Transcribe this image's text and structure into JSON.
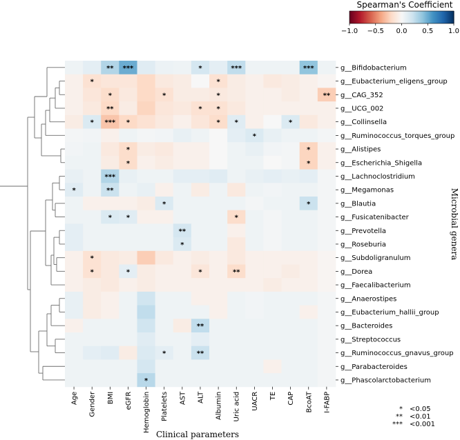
{
  "chart_data": {
    "type": "heatmap",
    "title": "",
    "xlabel": "Clinical parameters",
    "ylabel": "Microbial genera",
    "colorbar": {
      "title": "Spearman's Coefficient",
      "range": [
        -1.0,
        1.0
      ],
      "ticks": [
        "−1.0",
        "−0.5",
        "0.0",
        "0.5",
        "1.0"
      ],
      "colors": [
        "#67001f",
        "#b2182b",
        "#d6604d",
        "#f4a582",
        "#fddbc7",
        "#f7f7f7",
        "#d1e5f0",
        "#92c5de",
        "#4393c3",
        "#2166ac",
        "#053061"
      ]
    },
    "columns": [
      "Age",
      "Gender",
      "BMI",
      "eGFR",
      "Hemoglobin",
      "Platelets",
      "AST",
      "ALT",
      "Albumin",
      "Uric acid",
      "UACR",
      "TE",
      "CAP",
      "BcoAT",
      "I-FABP"
    ],
    "rows": [
      "g__Bifidobacterium",
      "g__Eubacterium_eligens_group",
      "g__CAG_352",
      "g__UCG_002",
      "g__Collinsella",
      "g__Ruminococcus_torques_group",
      "g__Alistipes",
      "g__Escherichia_Shigella",
      "g__Lachnoclostridium",
      "g__Megamonas",
      "g__Blautia",
      "g__Fusicatenibacter",
      "g__Prevotella",
      "g__Roseburia",
      "g__Subdoligranulum",
      "g__Dorea",
      "g__Faecalibacterium",
      "g__Anaerostipes",
      "g__Eubacterium_hallii_group",
      "g__Bacteroides",
      "g__Streptococcus",
      "g__Ruminococcus_gnavus_group",
      "g__Parabacteroides",
      "g__Phascolarctobacterium"
    ],
    "values": [
      [
        0.05,
        0.1,
        0.3,
        0.5,
        0.12,
        0.06,
        0.05,
        0.18,
        0.1,
        0.25,
        0.05,
        0.05,
        0.05,
        0.4,
        0.05
      ],
      [
        -0.05,
        -0.15,
        -0.12,
        -0.12,
        -0.2,
        -0.1,
        -0.08,
        0.0,
        -0.15,
        -0.08,
        -0.05,
        -0.1,
        -0.08,
        -0.05,
        -0.02
      ],
      [
        -0.05,
        -0.12,
        -0.18,
        -0.1,
        -0.2,
        -0.15,
        -0.08,
        -0.08,
        -0.1,
        -0.08,
        -0.05,
        -0.05,
        -0.08,
        -0.05,
        -0.25
      ],
      [
        -0.05,
        -0.1,
        -0.2,
        -0.08,
        -0.22,
        -0.12,
        -0.1,
        -0.15,
        -0.15,
        -0.1,
        -0.05,
        -0.05,
        -0.05,
        -0.05,
        -0.05
      ],
      [
        -0.08,
        0.15,
        -0.28,
        -0.2,
        -0.15,
        -0.1,
        -0.05,
        -0.12,
        -0.18,
        0.12,
        -0.05,
        0.0,
        0.15,
        -0.1,
        -0.05
      ],
      [
        0.02,
        0.03,
        -0.05,
        0.05,
        0.02,
        0.03,
        0.08,
        0.05,
        0.0,
        0.1,
        0.15,
        0.08,
        0.05,
        0.05,
        0.02
      ],
      [
        0.03,
        0.05,
        -0.1,
        -0.18,
        -0.08,
        -0.1,
        -0.05,
        -0.05,
        0.0,
        0.05,
        0.08,
        0.03,
        0.02,
        -0.22,
        -0.05
      ],
      [
        0.05,
        0.05,
        -0.08,
        -0.18,
        -0.05,
        -0.08,
        -0.05,
        -0.05,
        0.0,
        0.05,
        0.05,
        0.0,
        0.02,
        -0.22,
        -0.05
      ],
      [
        0.08,
        0.05,
        0.3,
        0.08,
        0.05,
        0.05,
        0.1,
        0.1,
        0.12,
        0.05,
        0.08,
        0.1,
        0.08,
        0.1,
        0.02
      ],
      [
        0.12,
        0.05,
        0.22,
        0.05,
        0.08,
        -0.05,
        0.05,
        -0.08,
        0.05,
        -0.1,
        0.05,
        0.03,
        0.05,
        0.05,
        0.02
      ],
      [
        0.05,
        -0.05,
        -0.05,
        -0.05,
        -0.08,
        0.15,
        0.05,
        0.05,
        0.05,
        0.05,
        0.02,
        0.05,
        0.05,
        0.22,
        0.02
      ],
      [
        0.05,
        0.05,
        0.15,
        0.12,
        -0.05,
        -0.05,
        0.05,
        0.05,
        0.05,
        -0.18,
        0.05,
        0.02,
        0.05,
        0.05,
        0.02
      ],
      [
        0.1,
        0.05,
        0.05,
        0.05,
        0.05,
        0.05,
        0.18,
        0.05,
        0.05,
        -0.05,
        0.05,
        0.02,
        0.05,
        0.05,
        0.02
      ],
      [
        0.1,
        0.05,
        0.05,
        0.05,
        0.05,
        0.05,
        0.15,
        0.05,
        0.05,
        -0.1,
        0.05,
        0.02,
        0.05,
        0.05,
        0.02
      ],
      [
        -0.05,
        -0.15,
        -0.1,
        -0.08,
        -0.25,
        -0.1,
        -0.05,
        -0.08,
        -0.05,
        -0.1,
        -0.05,
        -0.05,
        -0.05,
        -0.05,
        -0.02
      ],
      [
        -0.05,
        -0.15,
        -0.1,
        0.1,
        -0.08,
        -0.05,
        -0.05,
        -0.12,
        -0.05,
        -0.18,
        -0.05,
        -0.05,
        -0.08,
        -0.05,
        -0.02
      ],
      [
        -0.05,
        -0.08,
        -0.1,
        -0.05,
        -0.08,
        -0.05,
        -0.05,
        -0.05,
        -0.05,
        -0.05,
        -0.05,
        -0.08,
        -0.05,
        -0.05,
        -0.02
      ],
      [
        0.08,
        -0.08,
        -0.05,
        0.05,
        0.2,
        0.05,
        0.05,
        -0.05,
        -0.05,
        0.05,
        0.03,
        0.05,
        0.05,
        0.05,
        0.02
      ],
      [
        0.08,
        -0.08,
        -0.05,
        0.05,
        0.25,
        0.05,
        0.05,
        0.05,
        -0.05,
        0.05,
        0.03,
        0.05,
        0.05,
        -0.05,
        0.02
      ],
      [
        -0.05,
        0.05,
        0.05,
        0.05,
        0.2,
        0.05,
        -0.08,
        0.25,
        0.05,
        0.05,
        0.05,
        0.05,
        0.05,
        0.05,
        0.02
      ],
      [
        0.05,
        0.05,
        0.05,
        0.05,
        0.12,
        0.05,
        0.05,
        0.1,
        0.05,
        0.05,
        0.05,
        0.05,
        0.05,
        0.05,
        0.02
      ],
      [
        0.05,
        0.1,
        0.12,
        -0.08,
        0.15,
        0.1,
        0.05,
        0.22,
        0.05,
        0.05,
        0.05,
        0.05,
        0.05,
        0.05,
        0.02
      ],
      [
        0.05,
        0.05,
        0.05,
        0.05,
        0.18,
        0.05,
        0.05,
        0.05,
        0.05,
        0.05,
        0.05,
        -0.05,
        0.05,
        0.05,
        0.02
      ],
      [
        0.05,
        0.05,
        0.05,
        0.05,
        0.28,
        0.05,
        0.05,
        0.05,
        0.05,
        0.05,
        0.05,
        0.05,
        0.05,
        0.05,
        0.02
      ]
    ],
    "significance": [
      [
        "",
        "",
        "**",
        "***",
        "",
        "",
        "",
        "*",
        "",
        "***",
        "",
        "",
        "",
        "***",
        ""
      ],
      [
        "",
        "*",
        "",
        "",
        "",
        "",
        "",
        "",
        "*",
        "",
        "",
        "",
        "",
        "",
        ""
      ],
      [
        "",
        "",
        "*",
        "",
        "",
        "*",
        "",
        "",
        "*",
        "",
        "",
        "",
        "",
        "",
        "**"
      ],
      [
        "",
        "",
        "**",
        "",
        "",
        "",
        "",
        "*",
        "*",
        "",
        "",
        "",
        "",
        "",
        ""
      ],
      [
        "",
        "*",
        "***",
        "*",
        "",
        "",
        "",
        "",
        "*",
        "*",
        "",
        "",
        "*",
        "",
        ""
      ],
      [
        "",
        "",
        "",
        "",
        "",
        "",
        "",
        "",
        "",
        "",
        "*",
        "",
        "",
        "",
        ""
      ],
      [
        "",
        "",
        "",
        "*",
        "",
        "",
        "",
        "",
        "",
        "",
        "",
        "",
        "",
        "*",
        ""
      ],
      [
        "",
        "",
        "",
        "*",
        "",
        "",
        "",
        "",
        "",
        "",
        "",
        "",
        "",
        "*",
        ""
      ],
      [
        "",
        "",
        "***",
        "",
        "",
        "",
        "",
        "",
        "",
        "",
        "",
        "",
        "",
        "",
        ""
      ],
      [
        "*",
        "",
        "**",
        "",
        "",
        "",
        "",
        "",
        "",
        "",
        "",
        "",
        "",
        "",
        ""
      ],
      [
        "",
        "",
        "",
        "",
        "",
        "*",
        "",
        "",
        "",
        "",
        "",
        "",
        "",
        "*",
        ""
      ],
      [
        "",
        "",
        "*",
        "*",
        "",
        "",
        "",
        "",
        "",
        "*",
        "",
        "",
        "",
        "",
        ""
      ],
      [
        "",
        "",
        "",
        "",
        "",
        "",
        "**",
        "",
        "",
        "",
        "",
        "",
        "",
        "",
        ""
      ],
      [
        "",
        "",
        "",
        "",
        "",
        "",
        "*",
        "",
        "",
        "",
        "",
        "",
        "",
        "",
        ""
      ],
      [
        "",
        "*",
        "",
        "",
        "",
        "",
        "",
        "",
        "",
        "",
        "",
        "",
        "",
        "",
        ""
      ],
      [
        "",
        "*",
        "",
        "*",
        "",
        "",
        "",
        "*",
        "",
        "**",
        "",
        "",
        "",
        "",
        ""
      ],
      [
        "",
        "",
        "",
        "",
        "",
        "",
        "",
        "",
        "",
        "",
        "",
        "",
        "",
        "",
        ""
      ],
      [
        "",
        "",
        "",
        "",
        "",
        "",
        "",
        "",
        "",
        "",
        "",
        "",
        "",
        "",
        ""
      ],
      [
        "",
        "",
        "",
        "",
        "",
        "",
        "",
        "",
        "",
        "",
        "",
        "",
        "",
        "",
        ""
      ],
      [
        "",
        "",
        "",
        "",
        "",
        "",
        "",
        "**",
        "",
        "",
        "",
        "",
        "",
        "",
        ""
      ],
      [
        "",
        "",
        "",
        "",
        "",
        "",
        "",
        "",
        "",
        "",
        "",
        "",
        "",
        "",
        ""
      ],
      [
        "",
        "",
        "",
        "",
        "",
        "*",
        "",
        "**",
        "",
        "",
        "",
        "",
        "",
        "",
        ""
      ],
      [
        "",
        "",
        "",
        "",
        "",
        "",
        "",
        "",
        "",
        "",
        "",
        "",
        "",
        "",
        ""
      ],
      [
        "",
        "",
        "",
        "",
        "*",
        "",
        "",
        "",
        "",
        "",
        "",
        "",
        "",
        "",
        ""
      ]
    ],
    "significance_legend": [
      {
        "symbol": "*",
        "label": "<0.05"
      },
      {
        "symbol": "**",
        "label": "<0.01"
      },
      {
        "symbol": "***",
        "label": "<0.001"
      }
    ]
  }
}
